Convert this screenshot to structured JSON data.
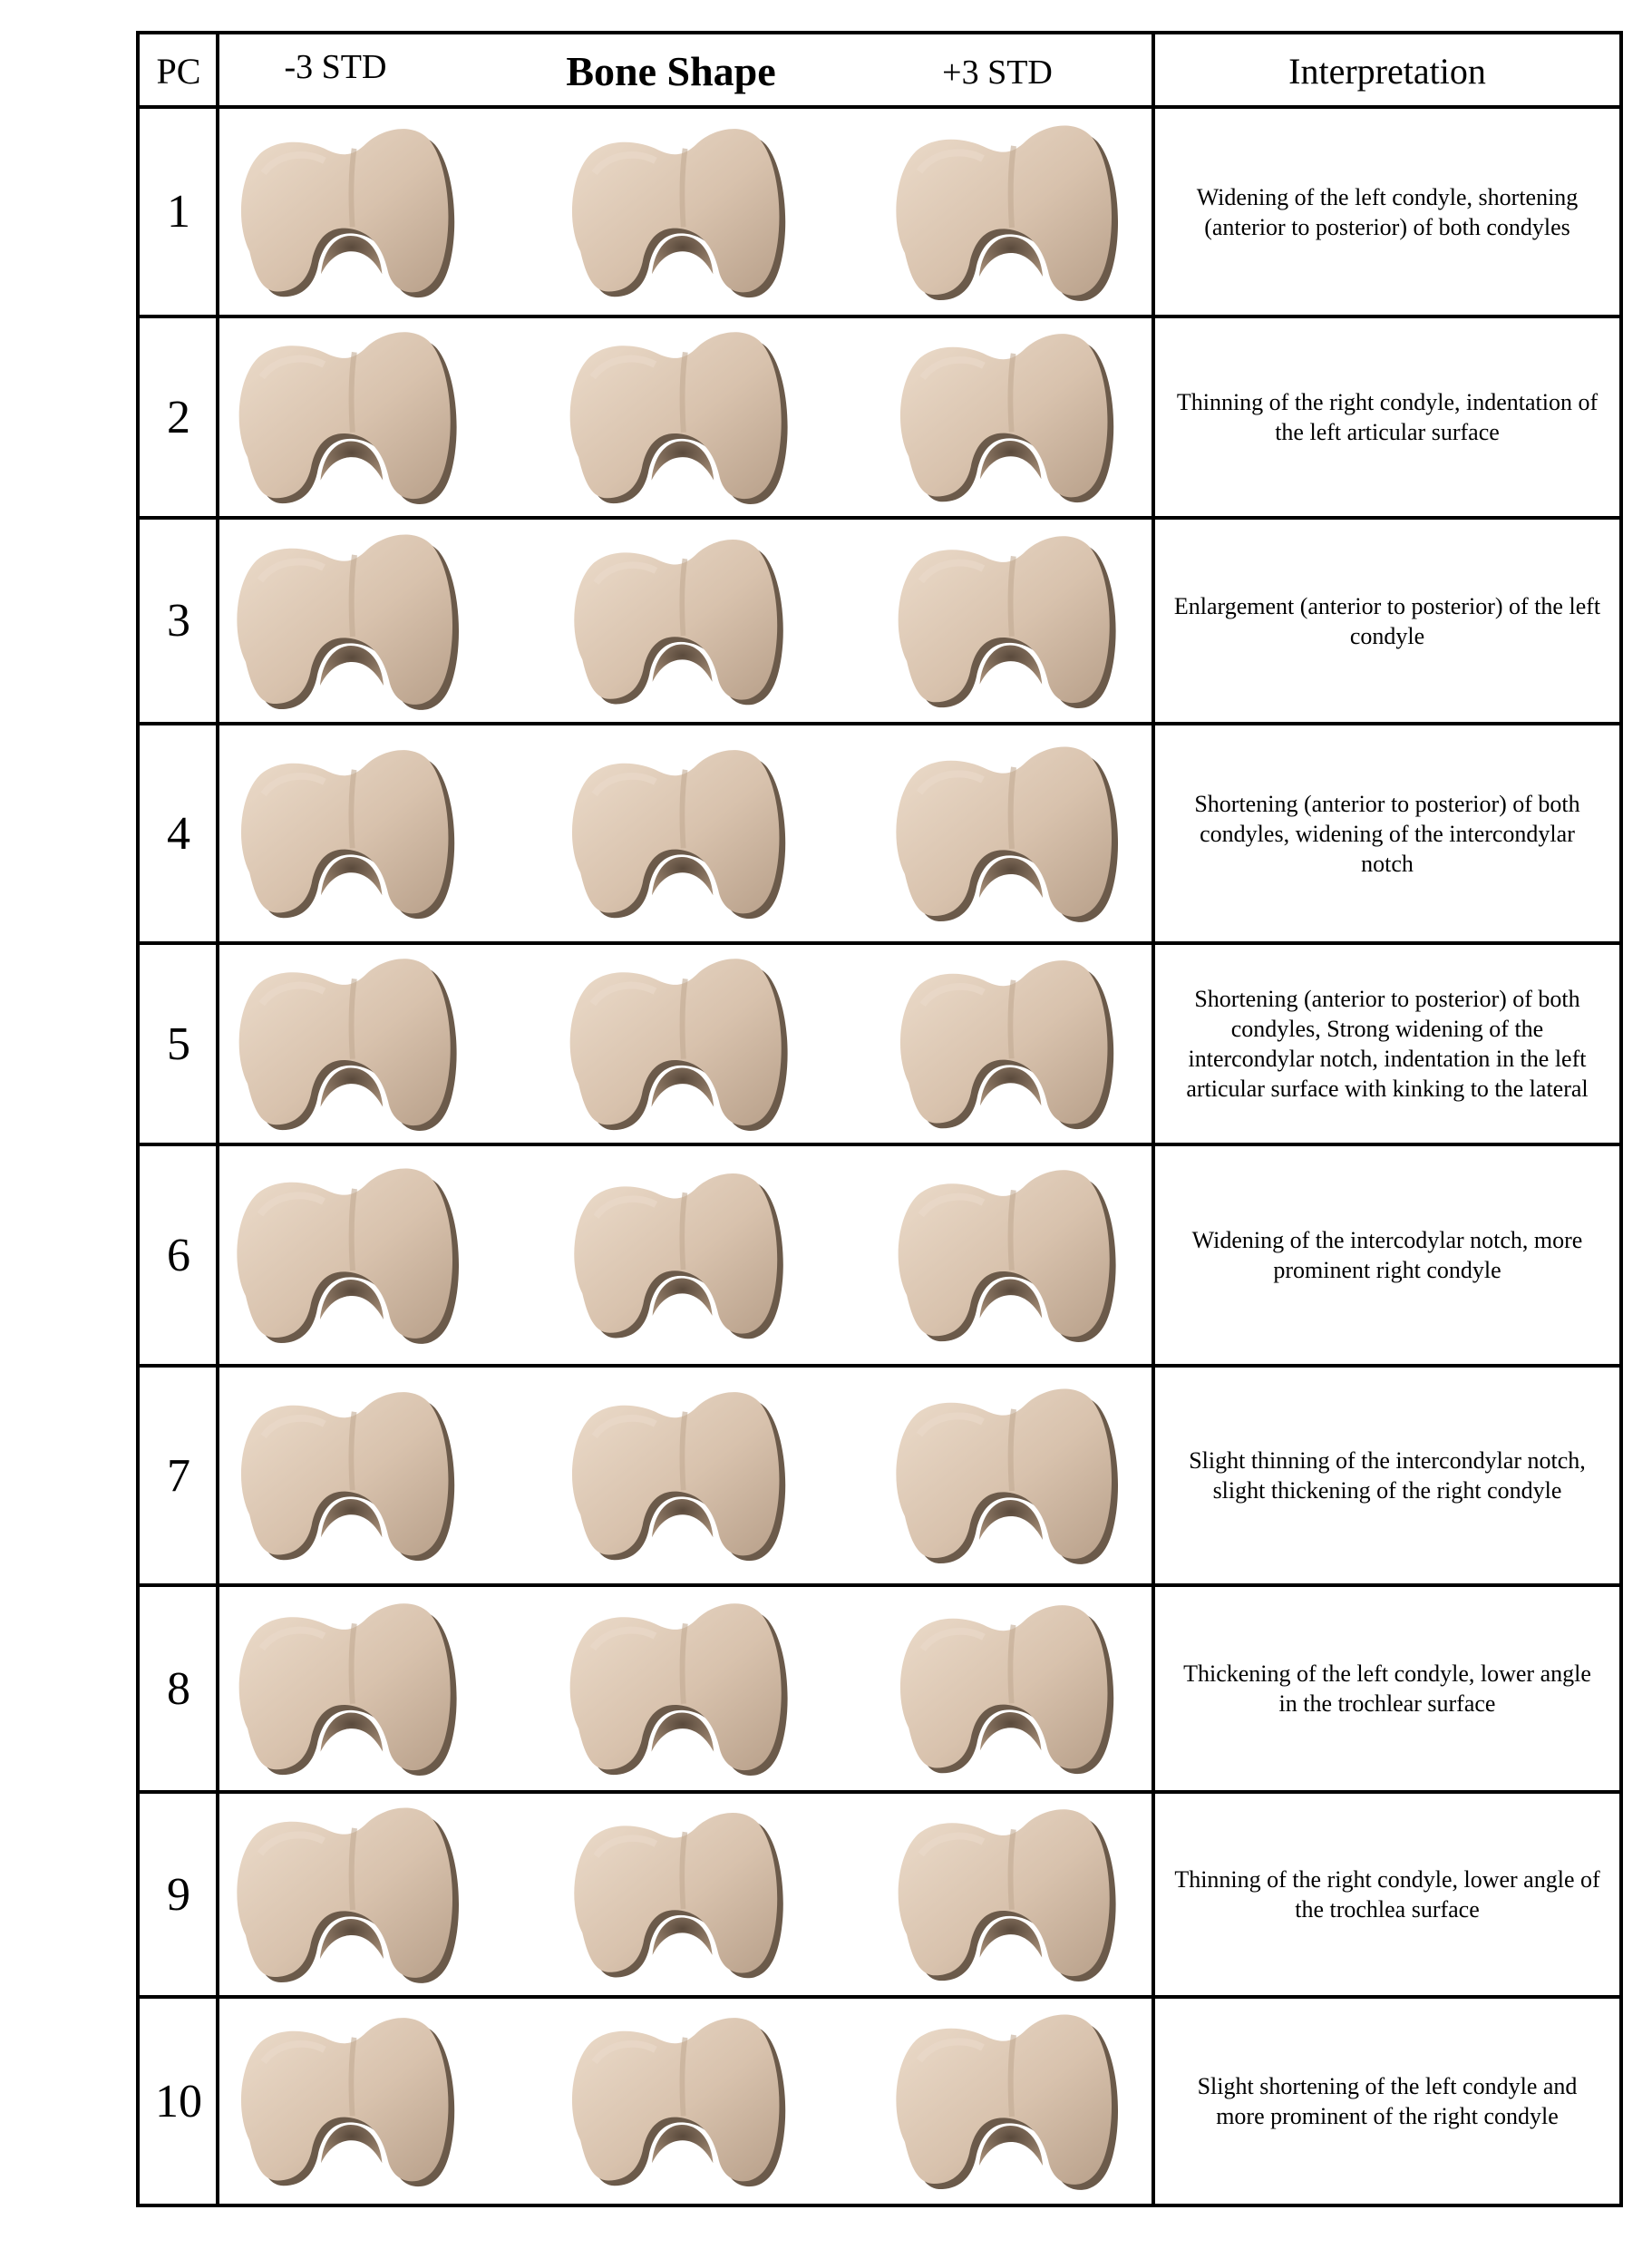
{
  "header": {
    "pc": "PC",
    "minus_std": "-3 STD",
    "bone_shape": "Bone Shape",
    "plus_std": "+3 STD",
    "interpretation": "Interpretation"
  },
  "rows": [
    {
      "pc": "1",
      "interpretation": "Widening of the left condyle, shortening (anterior to posterior) of both condyles"
    },
    {
      "pc": "2",
      "interpretation": "Thinning of the right condyle, indentation of the left articular surface"
    },
    {
      "pc": "3",
      "interpretation": "Enlargement (anterior to posterior) of the left condyle"
    },
    {
      "pc": "4",
      "interpretation": "Shortening (anterior to posterior) of both condyles, widening of the intercondylar notch"
    },
    {
      "pc": "5",
      "interpretation": "Shortening (anterior to posterior) of both condyles, Strong widening of the intercondylar notch, indentation in the left articular surface with kinking to the lateral"
    },
    {
      "pc": "6",
      "interpretation": "Widening of the intercodylar notch, more prominent right condyle"
    },
    {
      "pc": "7",
      "interpretation": "Slight thinning of the intercondylar notch, slight thickening of the right condyle"
    },
    {
      "pc": "8",
      "interpretation": "Thickening of the left condyle, lower angle in the trochlear surface"
    },
    {
      "pc": "9",
      "interpretation": "Thinning of the right condyle, lower angle of the trochlea surface"
    },
    {
      "pc": "10",
      "interpretation": "Slight shortening of the left condyle and more prominent of the right condyle"
    }
  ],
  "colors": {
    "bone_fill": "#d8c2ad",
    "bone_shadow": "#6b5a4a",
    "bone_highlight": "#e9d9c9",
    "grid": "#000000"
  }
}
